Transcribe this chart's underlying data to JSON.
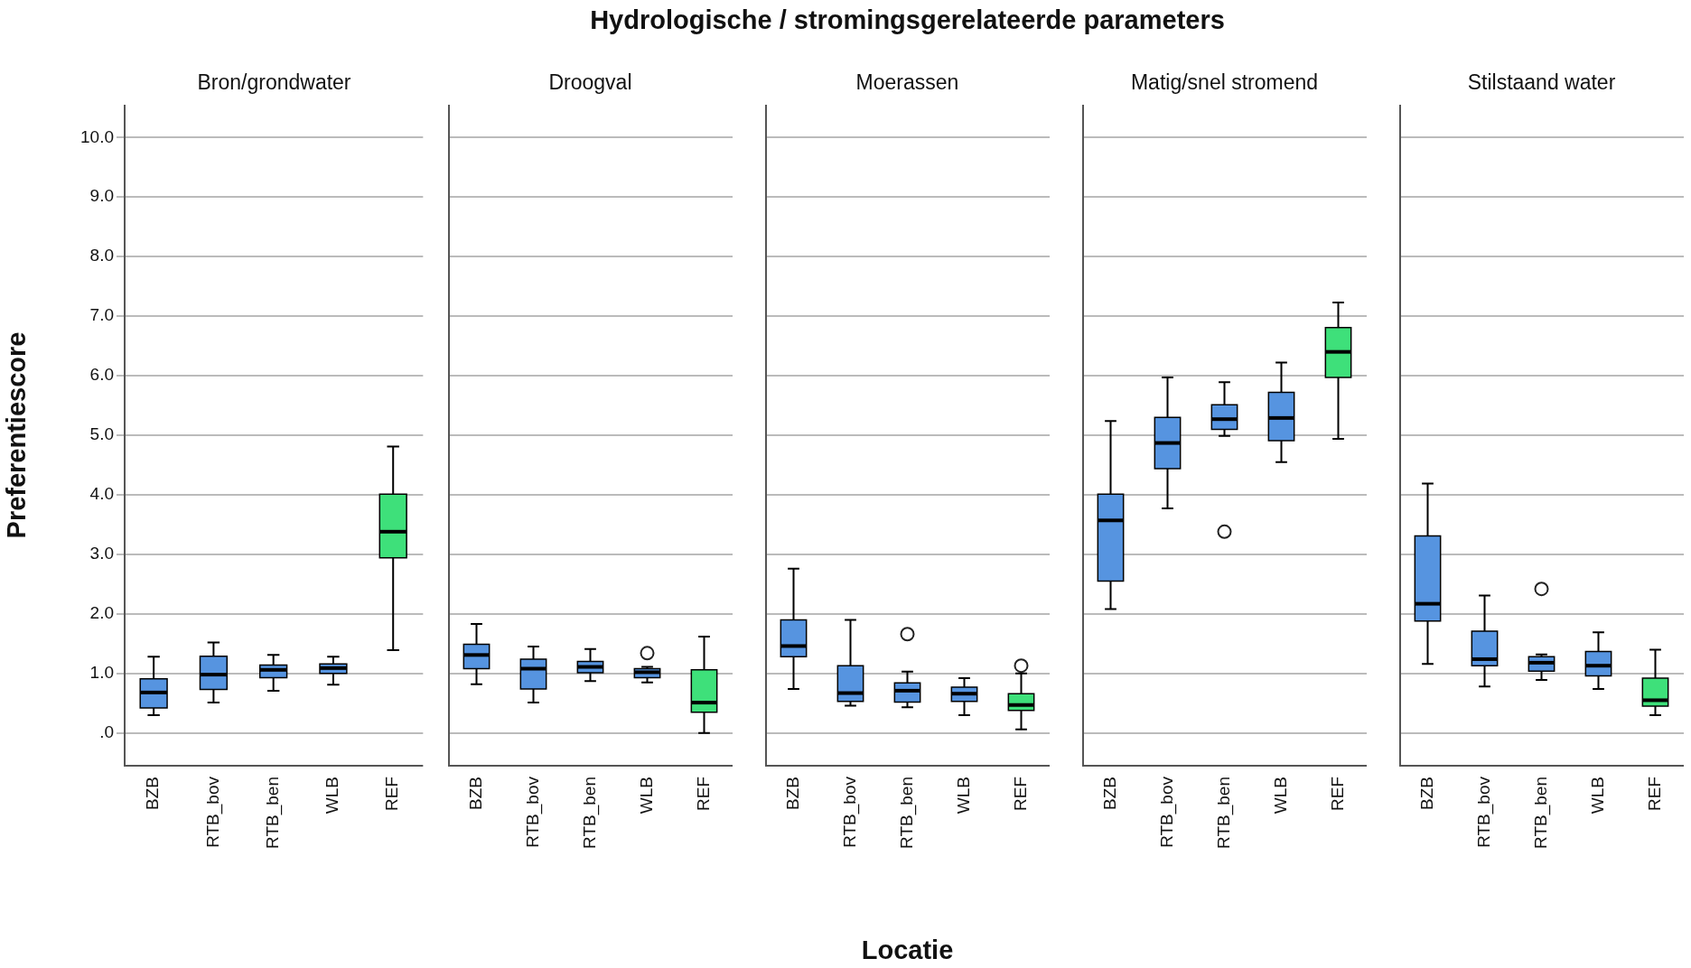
{
  "chart_data": [
    {
      "type": "box",
      "subtitle": "Bron/grondwater",
      "ylabel": "Preferentiescore",
      "categories": [
        "BZB",
        "RTB_bov",
        "RTB_ben",
        "WLB",
        "REF"
      ],
      "colors": [
        "#5694e0",
        "#5694e0",
        "#5694e0",
        "#5694e0",
        "#3ee07a"
      ],
      "boxes": [
        {
          "low": 0.3,
          "q1": 0.42,
          "median": 0.68,
          "q3": 0.91,
          "high": 1.28
        },
        {
          "low": 0.51,
          "q1": 0.73,
          "median": 0.98,
          "q3": 1.29,
          "high": 1.52
        },
        {
          "low": 0.71,
          "q1": 0.93,
          "median": 1.06,
          "q3": 1.14,
          "high": 1.31
        },
        {
          "low": 0.81,
          "q1": 1.0,
          "median": 1.09,
          "q3": 1.16,
          "high": 1.28
        },
        {
          "low": 1.39,
          "q1": 2.94,
          "median": 3.38,
          "q3": 4.01,
          "high": 4.81
        }
      ],
      "ylim": [
        -0.55,
        10.55
      ],
      "yticks": [
        {
          "value": 0,
          "label": ".0"
        },
        {
          "value": 1,
          "label": "1.0"
        },
        {
          "value": 2,
          "label": "2.0"
        },
        {
          "value": 3,
          "label": "3.0"
        },
        {
          "value": 4,
          "label": "4.0"
        },
        {
          "value": 5,
          "label": "5.0"
        },
        {
          "value": 6,
          "label": "6.0"
        },
        {
          "value": 7,
          "label": "7.0"
        },
        {
          "value": 8,
          "label": "8.0"
        },
        {
          "value": 9,
          "label": "9.0"
        },
        {
          "value": 10,
          "label": "10.0"
        }
      ],
      "grid": "y"
    },
    {
      "type": "box",
      "subtitle": "Droogval",
      "categories": [
        "BZB",
        "RTB_bov",
        "RTB_ben",
        "WLB",
        "REF"
      ],
      "colors": [
        "#5694e0",
        "#5694e0",
        "#5694e0",
        "#5694e0",
        "#3ee07a"
      ],
      "boxes": [
        {
          "low": 0.82,
          "q1": 1.08,
          "median": 1.31,
          "q3": 1.49,
          "high": 1.83
        },
        {
          "low": 0.51,
          "q1": 0.74,
          "median": 1.08,
          "q3": 1.24,
          "high": 1.45
        },
        {
          "low": 0.87,
          "q1": 1.01,
          "median": 1.11,
          "q3": 1.2,
          "high": 1.41
        },
        {
          "low": 0.85,
          "q1": 0.93,
          "median": 1.02,
          "q3": 1.08,
          "high": 1.11,
          "outliers": [
            1.34
          ]
        },
        {
          "low": 0.0,
          "q1": 0.35,
          "median": 0.51,
          "q3": 1.06,
          "high": 1.62
        }
      ],
      "ylim": [
        -0.55,
        10.55
      ],
      "yticks": [
        0,
        1,
        2,
        3,
        4,
        5,
        6,
        7,
        8,
        9,
        10
      ],
      "grid": "y",
      "tick_labels": "x"
    },
    {
      "type": "box",
      "title": "Hydrologische / stromingsgerelateerde parameters",
      "subtitle": "Moerassen",
      "xlabel": "Locatie",
      "categories": [
        "BZB",
        "RTB_bov",
        "RTB_ben",
        "WLB",
        "REF"
      ],
      "colors": [
        "#5694e0",
        "#5694e0",
        "#5694e0",
        "#5694e0",
        "#3ee07a"
      ],
      "boxes": [
        {
          "low": 0.74,
          "q1": 1.28,
          "median": 1.46,
          "q3": 1.9,
          "high": 2.76
        },
        {
          "low": 0.46,
          "q1": 0.53,
          "median": 0.67,
          "q3": 1.13,
          "high": 1.9
        },
        {
          "low": 0.43,
          "q1": 0.52,
          "median": 0.71,
          "q3": 0.84,
          "high": 1.03,
          "outliers": [
            1.66
          ]
        },
        {
          "low": 0.3,
          "q1": 0.53,
          "median": 0.66,
          "q3": 0.77,
          "high": 0.92
        },
        {
          "low": 0.06,
          "q1": 0.38,
          "median": 0.47,
          "q3": 0.66,
          "high": 1.0,
          "outliers": [
            1.13
          ]
        }
      ],
      "ylim": [
        -0.55,
        10.55
      ],
      "yticks": [
        0,
        1,
        2,
        3,
        4,
        5,
        6,
        7,
        8,
        9,
        10
      ],
      "grid": "y",
      "tick_labels": "x"
    },
    {
      "type": "box",
      "subtitle": "Matig/snel stromend",
      "categories": [
        "BZB",
        "RTB_bov",
        "RTB_ben",
        "WLB",
        "REF"
      ],
      "colors": [
        "#5694e0",
        "#5694e0",
        "#5694e0",
        "#5694e0",
        "#3ee07a"
      ],
      "boxes": [
        {
          "low": 2.08,
          "q1": 2.55,
          "median": 3.57,
          "q3": 4.01,
          "high": 5.24
        },
        {
          "low": 3.77,
          "q1": 4.44,
          "median": 4.87,
          "q3": 5.3,
          "high": 5.97
        },
        {
          "low": 4.99,
          "q1": 5.1,
          "median": 5.27,
          "q3": 5.51,
          "high": 5.89,
          "outliers": [
            3.38
          ]
        },
        {
          "low": 4.55,
          "q1": 4.91,
          "median": 5.29,
          "q3": 5.72,
          "high": 6.22
        },
        {
          "low": 4.94,
          "q1": 5.97,
          "median": 6.4,
          "q3": 6.81,
          "high": 7.23
        }
      ],
      "ylim": [
        -0.55,
        10.55
      ],
      "yticks": [
        0,
        1,
        2,
        3,
        4,
        5,
        6,
        7,
        8,
        9,
        10
      ],
      "grid": "y",
      "tick_labels": "x"
    },
    {
      "type": "box",
      "subtitle": "Stilstaand water",
      "categories": [
        "BZB",
        "RTB_bov",
        "RTB_ben",
        "WLB",
        "REF"
      ],
      "colors": [
        "#5694e0",
        "#5694e0",
        "#5694e0",
        "#5694e0",
        "#3ee07a"
      ],
      "boxes": [
        {
          "low": 1.16,
          "q1": 1.88,
          "median": 2.17,
          "q3": 3.31,
          "high": 4.19
        },
        {
          "low": 0.78,
          "q1": 1.13,
          "median": 1.24,
          "q3": 1.71,
          "high": 2.31
        },
        {
          "low": 0.89,
          "q1": 1.04,
          "median": 1.18,
          "q3": 1.28,
          "high": 1.32,
          "outliers": [
            2.42
          ]
        },
        {
          "low": 0.74,
          "q1": 0.96,
          "median": 1.13,
          "q3": 1.37,
          "high": 1.69
        },
        {
          "low": 0.3,
          "q1": 0.45,
          "median": 0.55,
          "q3": 0.92,
          "high": 1.4
        }
      ],
      "ylim": [
        -0.55,
        10.55
      ],
      "yticks": [
        0,
        1,
        2,
        3,
        4,
        5,
        6,
        7,
        8,
        9,
        10
      ],
      "grid": "y",
      "tick_labels": "x"
    }
  ]
}
